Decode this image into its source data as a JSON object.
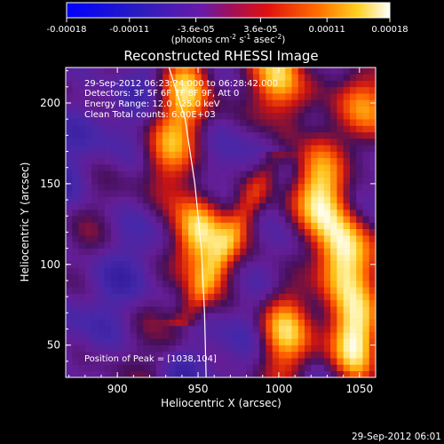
{
  "colorbar": {
    "ticks": [
      "-0.00018",
      "-0.00011",
      "-3.6e-05",
      "3.6e-05",
      "0.00011",
      "0.00018"
    ],
    "values": [
      -0.00018,
      -0.00011,
      -3.6e-05,
      3.6e-05,
      0.00011,
      0.00018
    ],
    "range": [
      -0.00018,
      0.00018
    ],
    "unit_main": "(photons cm",
    "unit_sup1": "-2",
    "unit_mid": " s",
    "unit_sup2": "-1",
    "unit_end": " asec",
    "unit_sup3": "-2",
    "unit_close": ")"
  },
  "info": {
    "time": "29-Sep-2012 06:23:24.000 to 06:28:42.000",
    "detectors": "Detectors: 3F 5F 6F 7F 8F 9F, Att 0",
    "energy": "Energy Range: 12.0 - 25.0 keV",
    "clean": "Clean     Total counts: 6.00E+03",
    "peak": "Position of Peak = [1038,104]"
  },
  "footer": {
    "timestamp": "29-Sep-2012 06:01"
  },
  "chart_data": {
    "type": "heatmap",
    "title": "Reconstructed RHESSI Image",
    "xlabel": "Heliocentric X (arcsec)",
    "ylabel": "Heliocentric Y (arcsec)",
    "xlim": [
      868,
      1060
    ],
    "ylim": [
      30,
      222
    ],
    "xticks": [
      900,
      950,
      1000,
      1050
    ],
    "yticks": [
      50,
      100,
      150,
      200
    ],
    "colormap": "blue-purple-red-orange-yellow-white",
    "limb": {
      "color": "#ffffff",
      "points": [
        [
          932,
          222
        ],
        [
          942,
          190
        ],
        [
          948,
          150
        ],
        [
          952,
          110
        ],
        [
          954,
          70
        ],
        [
          955,
          30
        ]
      ]
    },
    "peak": [
      1038,
      104
    ],
    "emission_sources": [
      {
        "x": 948,
        "y": 118,
        "level": 0.95
      },
      {
        "x": 1038,
        "y": 104,
        "level": 1.0
      },
      {
        "x": 1025,
        "y": 140,
        "level": 0.75
      },
      {
        "x": 1000,
        "y": 210,
        "level": 0.8
      },
      {
        "x": 940,
        "y": 210,
        "level": 0.65
      },
      {
        "x": 1000,
        "y": 60,
        "level": 0.7
      },
      {
        "x": 1045,
        "y": 50,
        "level": 0.9
      },
      {
        "x": 930,
        "y": 170,
        "level": 0.4
      },
      {
        "x": 1050,
        "y": 200,
        "level": 0.6
      }
    ]
  }
}
